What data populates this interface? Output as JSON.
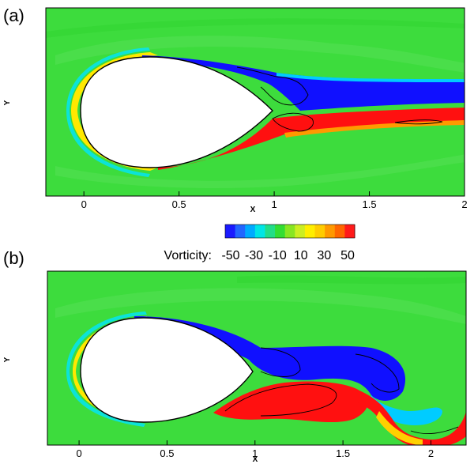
{
  "chart_data": [
    {
      "type": "heatmap",
      "panel": "(a)",
      "xlabel": "X",
      "ylabel": "Y",
      "xlim": [
        -0.2,
        2
      ],
      "x_ticks": [
        0,
        0.5,
        1,
        1.5,
        2
      ],
      "x_tick_labels": [
        "0",
        "0.5",
        "1",
        "1.5",
        "2"
      ],
      "field": "Vorticity"
    },
    {
      "type": "heatmap",
      "panel": "(b)",
      "xlabel": "X",
      "ylabel": "Y",
      "xlim": [
        -0.18,
        2.2
      ],
      "x_ticks": [
        0,
        0.5,
        1,
        1.5,
        2
      ],
      "x_tick_labels": [
        "0",
        "0.5",
        "1",
        "1.5",
        "2"
      ],
      "field": "Vorticity"
    }
  ],
  "colorbar": {
    "title": "Vorticity:",
    "ticks": [
      -50,
      -30,
      -10,
      10,
      30,
      50
    ],
    "tick_labels": [
      "-50",
      "-30",
      "-10",
      "10",
      "30",
      "50"
    ],
    "range": [
      -50,
      50
    ],
    "colors": [
      "#1a1aff",
      "#2266ff",
      "#00aaff",
      "#00e5e5",
      "#22dd88",
      "#33dd33",
      "#88e622",
      "#ccee22",
      "#ffee00",
      "#ffcc00",
      "#ff9900",
      "#ff6600",
      "#ff1a1a"
    ]
  },
  "colors": {
    "background_field": "#3ddc3d",
    "negative": "#1010ff",
    "positive": "#ff1010",
    "body": "#ffffff"
  }
}
